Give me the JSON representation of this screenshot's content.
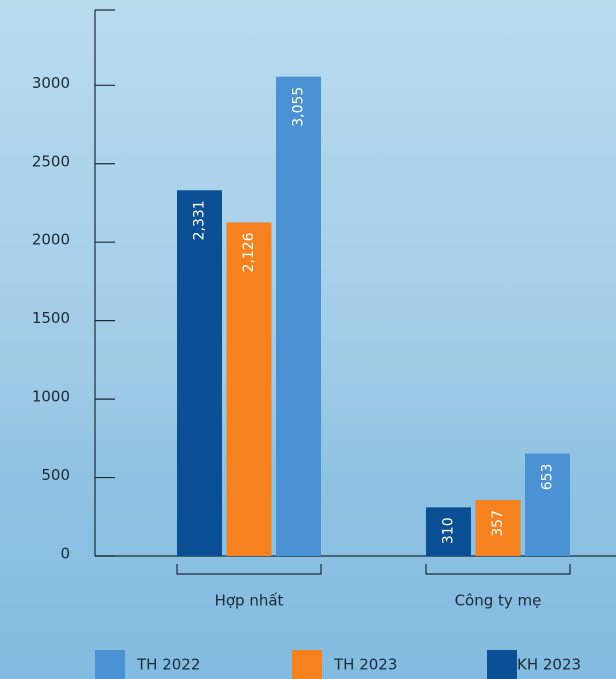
{
  "chart_data": {
    "type": "bar",
    "categories": [
      "Hợp nhất",
      "Công ty mẹ"
    ],
    "series": [
      {
        "name": "KH 2023",
        "color": "#0b4f95",
        "values": [
          2331,
          310
        ],
        "value_labels": [
          "2,331",
          "310"
        ]
      },
      {
        "name": "TH 2023",
        "color": "#f5821f",
        "values": [
          2126,
          357
        ],
        "value_labels": [
          "2,126",
          "357"
        ]
      },
      {
        "name": "TH 2022",
        "color": "#4a92d3",
        "values": [
          3055,
          653
        ],
        "value_labels": [
          "3,055",
          "653"
        ]
      }
    ],
    "legend_order": [
      "TH 2022",
      "TH 2023",
      "KH 2023"
    ],
    "ylim": [
      0,
      3480
    ],
    "yticks": [
      0,
      500,
      1000,
      1500,
      2000,
      2500,
      3000
    ]
  }
}
